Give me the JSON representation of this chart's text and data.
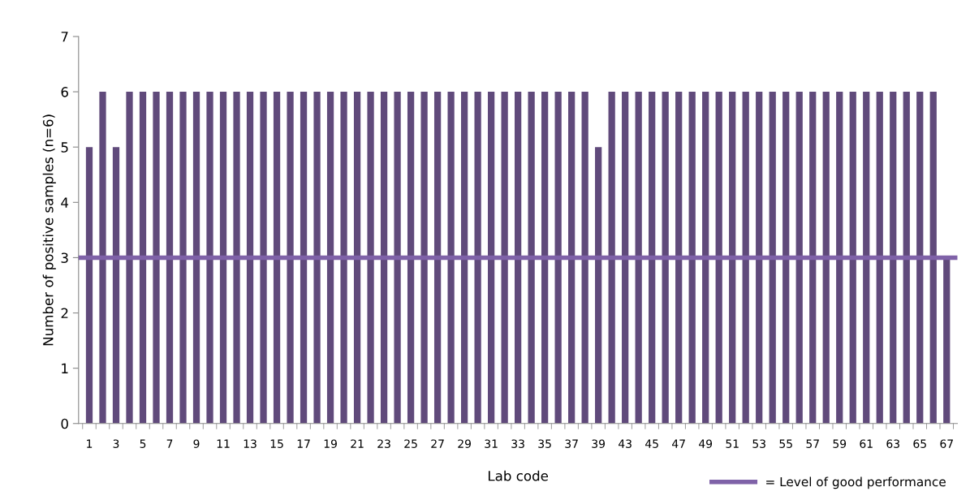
{
  "chart_data": {
    "type": "bar",
    "xlabel": "Lab code",
    "ylabel": "Number of positive samples (n=6)",
    "categories": [
      "1",
      null,
      "3",
      null,
      "5",
      null,
      "7",
      null,
      "9",
      null,
      "11",
      null,
      "13",
      null,
      "15",
      null,
      "17",
      null,
      "19",
      null,
      "21",
      null,
      "23",
      null,
      "25",
      null,
      "27",
      null,
      "29",
      null,
      "31",
      null,
      "33",
      null,
      "35",
      null,
      "37",
      null,
      "39",
      null,
      "43",
      null,
      "45",
      null,
      "47",
      null,
      "49",
      null,
      "51",
      null,
      "53",
      null,
      "55",
      null,
      "57",
      null,
      "59",
      null,
      "61",
      null,
      "63",
      null,
      "65",
      null,
      "67"
    ],
    "values": [
      5,
      6,
      5,
      6,
      6,
      6,
      6,
      6,
      6,
      6,
      6,
      6,
      6,
      6,
      6,
      6,
      6,
      6,
      6,
      6,
      6,
      6,
      6,
      6,
      6,
      6,
      6,
      6,
      6,
      6,
      6,
      6,
      6,
      6,
      6,
      6,
      6,
      6,
      5,
      6,
      6,
      6,
      6,
      6,
      6,
      6,
      6,
      6,
      6,
      6,
      6,
      6,
      6,
      6,
      6,
      6,
      6,
      6,
      6,
      6,
      6,
      6,
      6,
      6,
      3
    ],
    "color": "#604a7b",
    "ylim": [
      0,
      7
    ],
    "yticks": [
      0,
      1,
      2,
      3,
      4,
      5,
      6,
      7
    ],
    "ref_lines": [
      {
        "axis": "y",
        "value": 3,
        "label": "= Level of good performance",
        "color": "#7f62a8"
      }
    ],
    "legend": "bottom right",
    "grid": false
  }
}
